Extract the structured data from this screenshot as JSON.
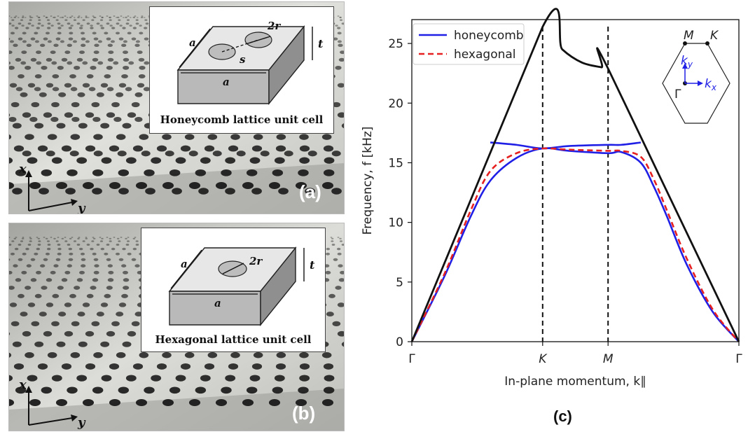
{
  "panel_a": {
    "label": "(a)",
    "inset_title": "Honeycomb lattice unit cell",
    "dims": {
      "a": "a",
      "t": "t",
      "r": "2r",
      "s": "s"
    },
    "axes": {
      "x": "x",
      "y": "y"
    }
  },
  "panel_b": {
    "label": "(b)",
    "inset_title": "Hexagonal lattice unit cell",
    "dims": {
      "a": "a",
      "t": "t",
      "r": "2r"
    },
    "axes": {
      "x": "x",
      "y": "y"
    }
  },
  "panel_c": {
    "label": "(c)",
    "bz_labels": {
      "M": "M",
      "K": "K",
      "gamma": "Γ",
      "kx": "k",
      "kx_sub": "x",
      "ky": "k",
      "ky_sub": "y"
    }
  },
  "colors": {
    "honeycomb": "#1f1fe6",
    "hexagonal": "#e62020",
    "black": "#111111",
    "photo_light": "#d8d8d4",
    "photo_dark": "#8c8c88",
    "hole": "#1a1a1a"
  },
  "chart_data": {
    "type": "line",
    "xlabel": "In-plane momentum, k∥",
    "ylabel": "Frequency, f [kHz]",
    "ylim": [
      0,
      27
    ],
    "yticks": [
      0,
      5,
      10,
      15,
      20,
      25
    ],
    "x_ticks": [
      {
        "pos": 0,
        "label": "Γ"
      },
      {
        "pos": 1,
        "label": "K"
      },
      {
        "pos": 1.5,
        "label": "M"
      },
      {
        "pos": 2.5,
        "label": "Γ"
      }
    ],
    "xlim": [
      0,
      2.5
    ],
    "legend": {
      "placement": "top-left",
      "entries": [
        "honeycomb",
        "hexagonal"
      ]
    },
    "series": [
      {
        "name": "honeycomb",
        "style": "solid-blue",
        "x": [
          0,
          0.25,
          0.45,
          0.6,
          0.8,
          1.0,
          1.2,
          1.5,
          1.6,
          1.75,
          1.85,
          1.95,
          2.1,
          2.3,
          2.5
        ],
        "y": [
          0,
          5.5,
          10.5,
          13.5,
          15.4,
          16.2,
          16.0,
          15.8,
          15.9,
          15.0,
          13.0,
          10.5,
          6.5,
          2.5,
          0
        ]
      },
      {
        "name": "honeycomb",
        "style": "solid-blue",
        "x": [
          0.6,
          0.8,
          1.0,
          1.2,
          1.5,
          1.6,
          1.75
        ],
        "y": [
          16.7,
          16.5,
          16.2,
          16.4,
          16.5,
          16.5,
          16.7
        ]
      },
      {
        "name": "hexagonal",
        "style": "dashed-red",
        "x": [
          0,
          0.25,
          0.45,
          0.6,
          0.8,
          1.0,
          1.2,
          1.5,
          1.6,
          1.75,
          1.85,
          1.95,
          2.1,
          2.3,
          2.5
        ],
        "y": [
          0,
          5.7,
          11.0,
          14.3,
          15.8,
          16.2,
          16.1,
          16.0,
          16.0,
          15.5,
          13.6,
          11.0,
          7.0,
          2.7,
          0
        ]
      },
      {
        "name": "",
        "style": "solid-black",
        "x": [
          0,
          1.0,
          1.15,
          1.3,
          1.45,
          1.5,
          2.5
        ],
        "y": [
          0,
          26.4,
          24.5,
          23.4,
          23.0,
          22.9,
          0
        ]
      }
    ],
    "vlines": [
      1.0,
      1.5
    ]
  }
}
